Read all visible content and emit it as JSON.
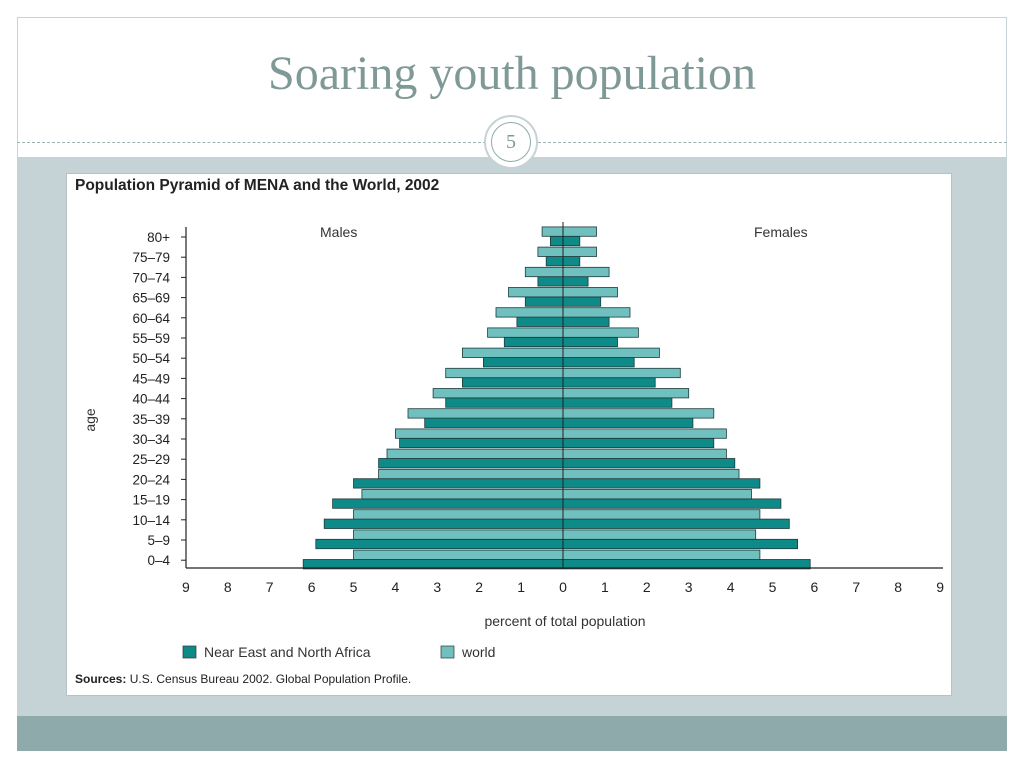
{
  "slide": {
    "title": "Soaring youth population",
    "number": "5"
  },
  "chart_data": {
    "type": "bar",
    "title": "Population Pyramid of MENA and the World, 2002",
    "xlabel": "percent of total population",
    "ylabel": "age",
    "left_label": "Males",
    "right_label": "Females",
    "xlim": [
      -9,
      9
    ],
    "x_ticks": [
      "9",
      "8",
      "7",
      "6",
      "5",
      "4",
      "3",
      "2",
      "1",
      "0",
      "1",
      "2",
      "3",
      "4",
      "5",
      "6",
      "7",
      "8",
      "9"
    ],
    "categories": [
      "80+",
      "75–79",
      "70–74",
      "65–69",
      "60–64",
      "55–59",
      "50–54",
      "45–49",
      "40–44",
      "35–39",
      "30–34",
      "25–29",
      "20–24",
      "15–19",
      "10–14",
      "5–9",
      "0–4"
    ],
    "series": [
      {
        "name": "Near East and North Africa",
        "color": "#0e8b88",
        "male": [
          0.3,
          0.4,
          0.6,
          0.9,
          1.1,
          1.4,
          1.9,
          2.4,
          2.8,
          3.3,
          3.9,
          4.4,
          5.0,
          5.5,
          5.7,
          5.9,
          6.2
        ],
        "female": [
          0.4,
          0.4,
          0.6,
          0.9,
          1.1,
          1.3,
          1.7,
          2.2,
          2.6,
          3.1,
          3.6,
          4.1,
          4.7,
          5.2,
          5.4,
          5.6,
          5.9
        ]
      },
      {
        "name": "world",
        "color": "#6fc0bf",
        "male": [
          0.5,
          0.6,
          0.9,
          1.3,
          1.6,
          1.8,
          2.4,
          2.8,
          3.1,
          3.7,
          4.0,
          4.2,
          4.4,
          4.8,
          5.0,
          5.0,
          5.0
        ],
        "female": [
          0.8,
          0.8,
          1.1,
          1.3,
          1.6,
          1.8,
          2.3,
          2.8,
          3.0,
          3.6,
          3.9,
          3.9,
          4.2,
          4.5,
          4.7,
          4.6,
          4.7
        ]
      }
    ],
    "legend": "bottom-left",
    "source_label": "Sources:",
    "source_text": "U.S. Census Bureau 2002. Global Population Profile."
  }
}
